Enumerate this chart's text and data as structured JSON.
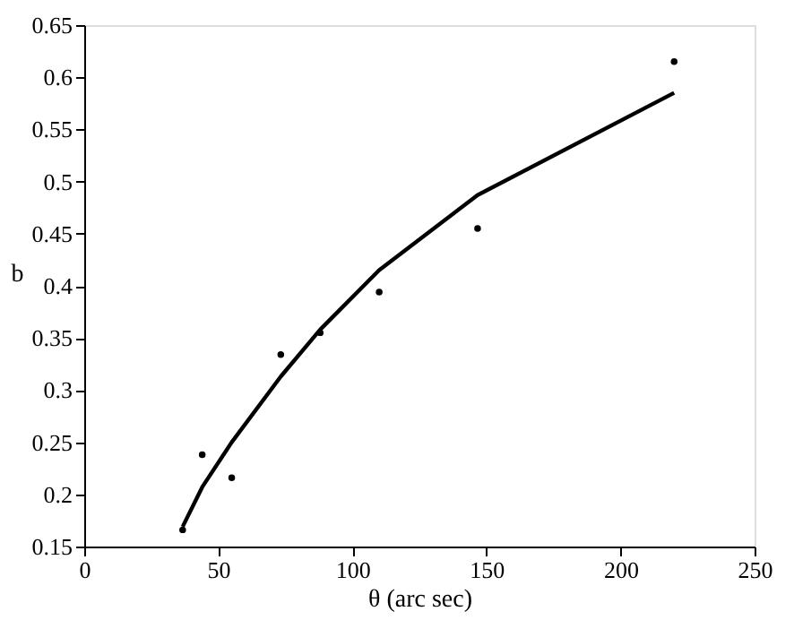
{
  "chart_data": {
    "type": "scatter",
    "xlabel": "θ (arc sec)",
    "ylabel": "b",
    "xlim": [
      0,
      250
    ],
    "ylim": [
      0.15,
      0.65
    ],
    "xticks": [
      0,
      50,
      100,
      150,
      200,
      250
    ],
    "yticks": [
      0.15,
      0.2,
      0.25,
      0.3,
      0.35,
      0.4,
      0.45,
      0.5,
      0.55,
      0.6,
      0.65
    ],
    "grid": false,
    "series": [
      {
        "color": "#000000",
        "marker": "circle",
        "x": [
          36.7,
          44,
          55,
          73.3,
          88,
          110,
          146.7,
          220
        ],
        "values": [
          0.166,
          0.238,
          0.216,
          0.334,
          0.355,
          0.394,
          0.455,
          0.615
        ]
      },
      {
        "type": "line",
        "color": "#000000",
        "marker": "none",
        "line_style": "solid",
        "x": [
          36.7,
          44,
          55,
          73.3,
          88,
          110,
          146.7,
          220
        ],
        "values": [
          0.169,
          0.207,
          0.25,
          0.313,
          0.358,
          0.415,
          0.487,
          0.585
        ]
      }
    ]
  }
}
